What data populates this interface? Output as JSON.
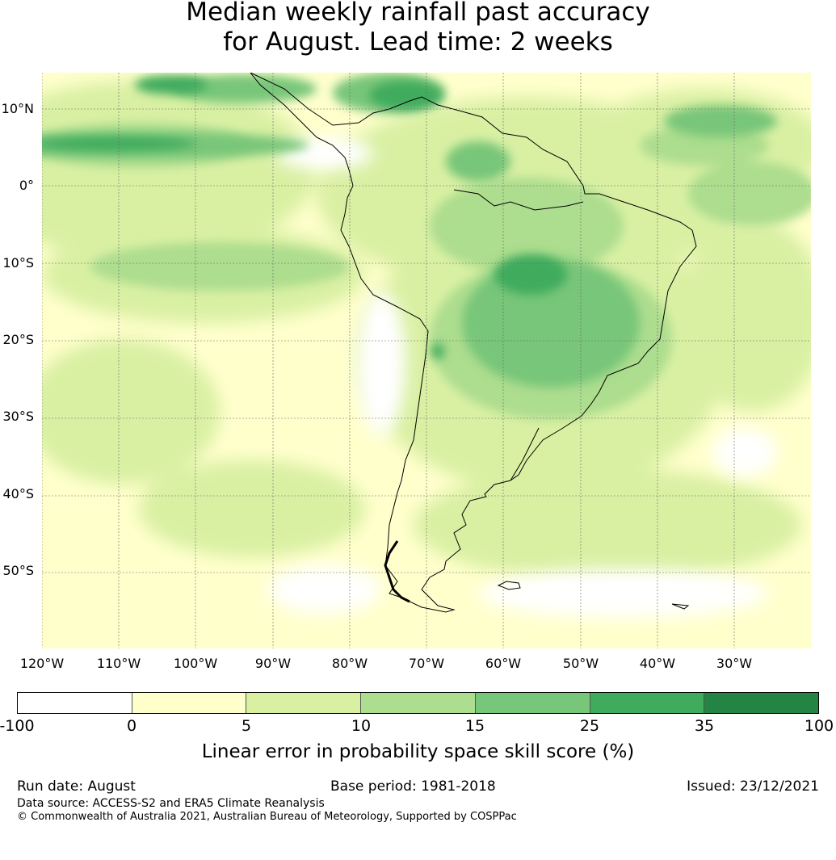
{
  "title": {
    "line1": "Median weekly rainfall past accuracy",
    "line2": "for August. Lead time: 2 weeks"
  },
  "map": {
    "lat_labels": [
      "10°N",
      "0°",
      "10°S",
      "20°S",
      "30°S",
      "40°S",
      "50°S"
    ],
    "lon_labels": [
      "120°W",
      "110°W",
      "100°W",
      "90°W",
      "80°W",
      "70°W",
      "60°W",
      "50°W",
      "40°W",
      "30°W"
    ]
  },
  "colorbar": {
    "ticks": [
      "-100",
      "0",
      "5",
      "10",
      "15",
      "25",
      "35",
      "100"
    ],
    "colors": [
      "#ffffff",
      "#ffffcc",
      "#d9f0a3",
      "#addd8e",
      "#78c679",
      "#41ab5d",
      "#238443"
    ],
    "label": "Linear error in probability space skill score (%)"
  },
  "footer": {
    "run_date": "Run date: August",
    "base_period": "Base period: 1981-2018",
    "issued": "Issued: 23/12/2021",
    "data_source": "Data source: ACCESS-S2 and ERA5 Climate Reanalysis",
    "copyright": "© Commonwealth of Australia 2021, Australian Bureau of Meteorology, Supported by COSPPac"
  }
}
